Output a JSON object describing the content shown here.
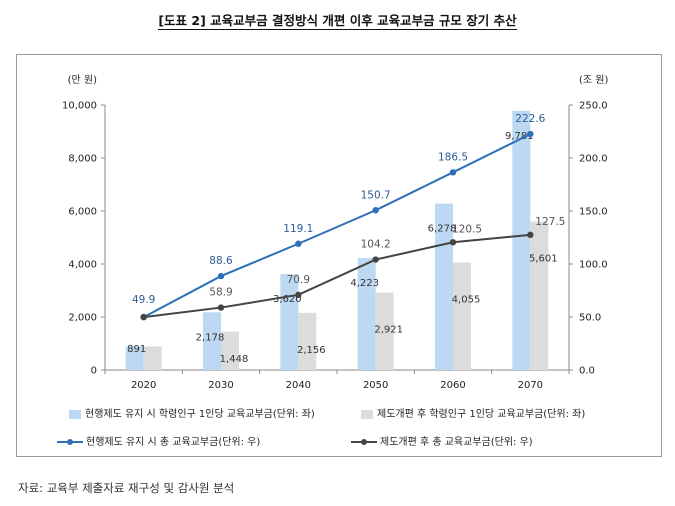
{
  "title": "[도표 2] 교육교부금 결정방식 개편 이후 교육교부금 규모 장기 추산",
  "source": "자료: 교육부 제출자료 재구성 및 감사원 분석",
  "chart_data": {
    "type": "bar+line",
    "categories": [
      "2020",
      "2030",
      "2040",
      "2050",
      "2060",
      "2070"
    ],
    "left_axis": {
      "unit_label": "(만 원)",
      "min": 0,
      "max": 10000,
      "step": 2000,
      "tick_labels": [
        "0",
        "2,000",
        "4,000",
        "6,000",
        "8,000",
        "10,000"
      ]
    },
    "right_axis": {
      "unit_label": "(조 원)",
      "min": 0,
      "max": 250,
      "step": 50,
      "tick_labels": [
        "0.0",
        "50.0",
        "100.0",
        "150.0",
        "200.0",
        "250.0"
      ]
    },
    "bar_series": [
      {
        "name": "현행제도 유지 시 학령인구 1인당 교육교부금(단위: 좌)",
        "color": "#bcd8f3",
        "values": [
          891,
          2178,
          3620,
          4223,
          6278,
          9781
        ],
        "labels": [
          "891",
          "2,178",
          "3,620",
          "4,223",
          "6,278",
          "9,781"
        ]
      },
      {
        "name": "제도개편 후 학령인구 1인당 교육교부금(단위: 좌)",
        "color": "#dcdcdc",
        "values": [
          891,
          1448,
          2156,
          2921,
          4055,
          5601
        ],
        "labels": [
          "",
          "1,448",
          "2,156",
          "2,921",
          "4,055",
          "5,601"
        ]
      }
    ],
    "line_series": [
      {
        "name": "현행제도 유지 시 총 교육교부금(단위: 우)",
        "color": "#2e6fb7",
        "label_color": "#2d5d95",
        "values": [
          49.9,
          88.6,
          119.1,
          150.7,
          186.5,
          222.6
        ],
        "labels": [
          "49.9",
          "88.6",
          "119.1",
          "150.7",
          "186.5",
          "222.6"
        ]
      },
      {
        "name": "제도개편 후 총 교육교부금(단위: 우)",
        "color": "#444444",
        "label_color": "#555555",
        "values": [
          49.9,
          58.9,
          70.9,
          104.2,
          120.5,
          127.5
        ],
        "labels": [
          "",
          "58.9",
          "70.9",
          "104.2",
          "120.5",
          "127.5"
        ]
      }
    ]
  }
}
